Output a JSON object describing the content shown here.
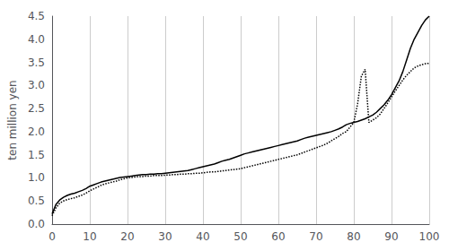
{
  "chart_data": {
    "type": "line",
    "ylabel": "ten million yen",
    "x": [
      0,
      1,
      2,
      3,
      4,
      5,
      6,
      7,
      8,
      9,
      10,
      11,
      12,
      13,
      14,
      15,
      16,
      17,
      18,
      19,
      20,
      21,
      22,
      23,
      24,
      25,
      26,
      27,
      28,
      29,
      30,
      31,
      32,
      33,
      34,
      35,
      36,
      37,
      38,
      39,
      40,
      41,
      42,
      43,
      44,
      45,
      46,
      47,
      48,
      49,
      50,
      51,
      52,
      53,
      54,
      55,
      56,
      57,
      58,
      59,
      60,
      61,
      62,
      63,
      64,
      65,
      66,
      67,
      68,
      69,
      70,
      71,
      72,
      73,
      74,
      75,
      76,
      77,
      78,
      79,
      80,
      81,
      82,
      83,
      84,
      85,
      86,
      87,
      88,
      89,
      90,
      91,
      92,
      93,
      94,
      95,
      96,
      97,
      98,
      99,
      100
    ],
    "series": [
      {
        "color": "#000000",
        "line_style": "solid",
        "values": [
          0.22,
          0.42,
          0.52,
          0.58,
          0.62,
          0.65,
          0.67,
          0.7,
          0.73,
          0.77,
          0.82,
          0.85,
          0.88,
          0.91,
          0.93,
          0.95,
          0.97,
          0.99,
          1.01,
          1.02,
          1.03,
          1.04,
          1.05,
          1.06,
          1.07,
          1.07,
          1.08,
          1.08,
          1.09,
          1.09,
          1.1,
          1.11,
          1.12,
          1.13,
          1.14,
          1.15,
          1.16,
          1.18,
          1.2,
          1.22,
          1.24,
          1.26,
          1.28,
          1.3,
          1.33,
          1.36,
          1.38,
          1.4,
          1.43,
          1.46,
          1.49,
          1.52,
          1.54,
          1.56,
          1.58,
          1.6,
          1.62,
          1.64,
          1.66,
          1.68,
          1.7,
          1.72,
          1.74,
          1.76,
          1.78,
          1.8,
          1.83,
          1.86,
          1.88,
          1.9,
          1.92,
          1.94,
          1.96,
          1.98,
          2.0,
          2.03,
          2.06,
          2.1,
          2.15,
          2.18,
          2.2,
          2.22,
          2.25,
          2.28,
          2.32,
          2.36,
          2.42,
          2.5,
          2.58,
          2.68,
          2.8,
          2.95,
          3.1,
          3.3,
          3.55,
          3.8,
          4.0,
          4.15,
          4.3,
          4.42,
          4.5
        ]
      },
      {
        "color": "#000000",
        "line_style": "dotted",
        "values": [
          0.18,
          0.35,
          0.45,
          0.5,
          0.53,
          0.55,
          0.57,
          0.6,
          0.63,
          0.67,
          0.72,
          0.76,
          0.8,
          0.84,
          0.87,
          0.89,
          0.91,
          0.93,
          0.96,
          0.98,
          1.0,
          1.01,
          1.02,
          1.03,
          1.03,
          1.04,
          1.04,
          1.05,
          1.05,
          1.05,
          1.06,
          1.06,
          1.07,
          1.07,
          1.08,
          1.08,
          1.09,
          1.09,
          1.1,
          1.1,
          1.11,
          1.12,
          1.13,
          1.13,
          1.14,
          1.15,
          1.16,
          1.17,
          1.18,
          1.19,
          1.2,
          1.22,
          1.24,
          1.26,
          1.28,
          1.3,
          1.32,
          1.34,
          1.36,
          1.38,
          1.4,
          1.42,
          1.44,
          1.46,
          1.48,
          1.5,
          1.53,
          1.56,
          1.59,
          1.62,
          1.65,
          1.68,
          1.71,
          1.75,
          1.8,
          1.85,
          1.9,
          1.96,
          2.0,
          2.1,
          2.2,
          2.6,
          3.2,
          3.35,
          2.2,
          2.25,
          2.3,
          2.38,
          2.5,
          2.62,
          2.75,
          2.88,
          3.0,
          3.12,
          3.22,
          3.3,
          3.38,
          3.42,
          3.45,
          3.47,
          3.48
        ]
      }
    ],
    "xlim": [
      0,
      100
    ],
    "ylim": [
      0,
      4.5
    ],
    "xticks": [
      0,
      10,
      20,
      30,
      40,
      50,
      60,
      70,
      80,
      90,
      100
    ],
    "yticks": [
      {
        "value": 0,
        "label": "0.0"
      },
      0.5,
      {
        "value": 1,
        "label": "1.0"
      },
      1.5,
      {
        "value": 2,
        "label": "2.0"
      },
      2.5,
      {
        "value": 3,
        "label": "3.0"
      },
      3.5,
      {
        "value": 4,
        "label": "4.0"
      },
      4.5
    ],
    "grid": "x"
  }
}
